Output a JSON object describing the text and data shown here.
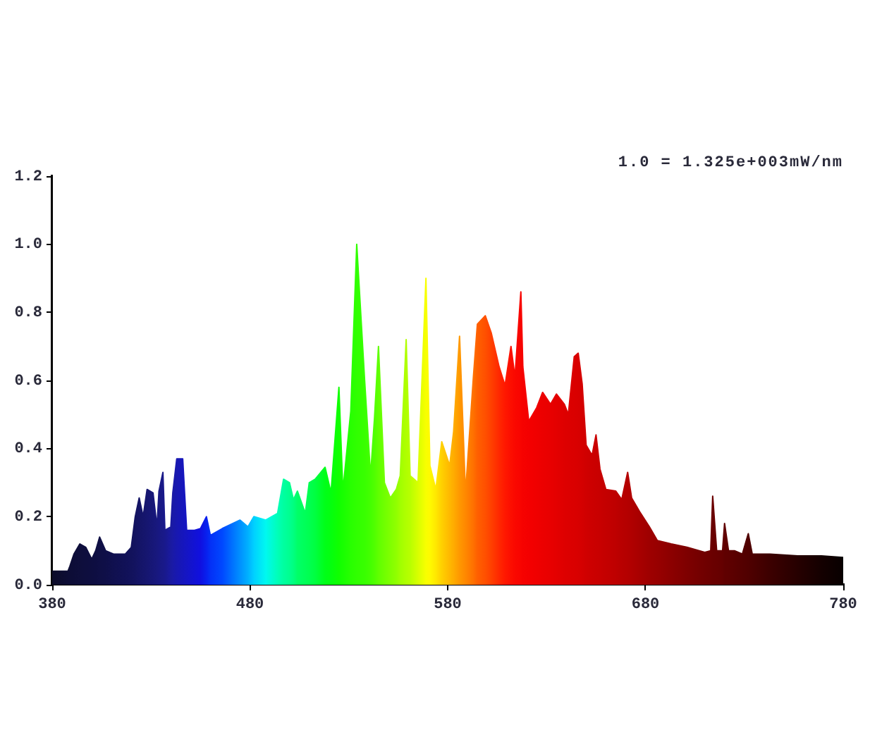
{
  "chart_data": {
    "type": "area",
    "annotations": [
      "1.0 = 1.325e+003mW/nm"
    ],
    "x": [
      380,
      388,
      389,
      391,
      394,
      397,
      400,
      402,
      404,
      407,
      411,
      417,
      420,
      422,
      424,
      426,
      428,
      431,
      433,
      434,
      436,
      437,
      440,
      441,
      443,
      446,
      448,
      452,
      455,
      458,
      460,
      466,
      475,
      479,
      482,
      488,
      494,
      497,
      500,
      502,
      504,
      508,
      510,
      513,
      518,
      521,
      525,
      527,
      531,
      534,
      538,
      541,
      543,
      545,
      548,
      551,
      554,
      556,
      559,
      561,
      565,
      569,
      571,
      574,
      577,
      581,
      583,
      586,
      589,
      593,
      595,
      599,
      602,
      606,
      609,
      612,
      614,
      617,
      618,
      621,
      625,
      628,
      632,
      635,
      639,
      641,
      644,
      646,
      648,
      650,
      653,
      655,
      657,
      660,
      665,
      668,
      671,
      673,
      677,
      682,
      686,
      693,
      701,
      710,
      713,
      714,
      716,
      719,
      720,
      722,
      725,
      729,
      732,
      734,
      743,
      757,
      769,
      780
    ],
    "values": [
      0.04,
      0.04,
      0.055,
      0.09,
      0.12,
      0.11,
      0.075,
      0.1,
      0.14,
      0.1,
      0.09,
      0.09,
      0.11,
      0.2,
      0.255,
      0.2,
      0.28,
      0.27,
      0.17,
      0.275,
      0.33,
      0.16,
      0.17,
      0.27,
      0.37,
      0.37,
      0.16,
      0.16,
      0.165,
      0.2,
      0.145,
      0.165,
      0.19,
      0.17,
      0.2,
      0.19,
      0.21,
      0.31,
      0.3,
      0.25,
      0.275,
      0.21,
      0.3,
      0.31,
      0.345,
      0.27,
      0.58,
      0.275,
      0.51,
      1.0,
      0.6,
      0.32,
      0.49,
      0.7,
      0.3,
      0.255,
      0.28,
      0.32,
      0.72,
      0.32,
      0.3,
      0.9,
      0.35,
      0.28,
      0.42,
      0.35,
      0.45,
      0.73,
      0.27,
      0.61,
      0.765,
      0.79,
      0.74,
      0.64,
      0.585,
      0.7,
      0.61,
      0.86,
      0.64,
      0.48,
      0.52,
      0.565,
      0.53,
      0.56,
      0.53,
      0.5,
      0.67,
      0.68,
      0.59,
      0.41,
      0.38,
      0.44,
      0.34,
      0.28,
      0.275,
      0.25,
      0.33,
      0.255,
      0.215,
      0.17,
      0.13,
      0.12,
      0.11,
      0.095,
      0.1,
      0.26,
      0.1,
      0.1,
      0.18,
      0.1,
      0.1,
      0.09,
      0.15,
      0.09,
      0.09,
      0.085,
      0.085,
      0.08
    ],
    "colors": [
      "#0c0c28",
      "#0d0d35",
      "#0d0d36",
      "#0d0d38",
      "#0e0e3b",
      "#0e0e3e",
      "#0e0e40",
      "#0e0e42",
      "#0f0f45",
      "#0f0f48",
      "#10104f",
      "#111157",
      "#12125c",
      "#131360",
      "#141466",
      "#15156b",
      "#161670",
      "#171778",
      "#18187e",
      "#181882",
      "#191988",
      "#19198c",
      "#1a1aa0",
      "#1a1aa6",
      "#1818b0",
      "#1616bc",
      "#1515c4",
      "#1212d4",
      "#1010e0",
      "#0820ee",
      "#0430f6",
      "#0048ff",
      "#0090ff",
      "#00b0ff",
      "#00d0ff",
      "#00f8f0",
      "#00ffb8",
      "#00ffa0",
      "#00ff90",
      "#00ff80",
      "#00ff68",
      "#00ff58",
      "#00ff50",
      "#00ff40",
      "#00ff18",
      "#04ff0e",
      "#10ff00",
      "#18ff00",
      "#28ff00",
      "#30ff00",
      "#38ff00",
      "#44ff00",
      "#50ff00",
      "#60ff00",
      "#70ff00",
      "#80ff00",
      "#90ff00",
      "#a0ff00",
      "#b0ff00",
      "#b8ff00",
      "#d8ff00",
      "#f8ff00",
      "#fffa00",
      "#ffe800",
      "#ffd000",
      "#ffb800",
      "#ffac00",
      "#ff9800",
      "#ff8800",
      "#ff7000",
      "#ff6000",
      "#ff5000",
      "#ff4000",
      "#ff2800",
      "#ff1800",
      "#fc0e00",
      "#fa0800",
      "#f80400",
      "#f60200",
      "#f40000",
      "#f00000",
      "#ec0000",
      "#e80000",
      "#e40000",
      "#de0000",
      "#dc0000",
      "#da0000",
      "#d80000",
      "#d40000",
      "#d00000",
      "#cc0000",
      "#ca0000",
      "#c80000",
      "#c40000",
      "#be0000",
      "#b80000",
      "#b40000",
      "#b00000",
      "#a80000",
      "#9e0000",
      "#980000",
      "#8c0000",
      "#7e0000",
      "#700000",
      "#6c0000",
      "#6a0000",
      "#680000",
      "#640000",
      "#600000",
      "#5e0000",
      "#5a0000",
      "#540000",
      "#500000",
      "#4c0000",
      "#3c0000",
      "#260000",
      "#140000",
      "#080000"
    ],
    "xlim": [
      380,
      780
    ],
    "xticks": [
      380,
      480,
      580,
      680,
      780
    ],
    "ylim": [
      0,
      1.2
    ],
    "yticks": [
      {
        "value": 0,
        "label": "0.0"
      },
      0.2,
      0.4,
      0.6,
      0.8,
      {
        "value": 1,
        "label": "1.0"
      },
      1.2
    ],
    "marker": "none"
  }
}
